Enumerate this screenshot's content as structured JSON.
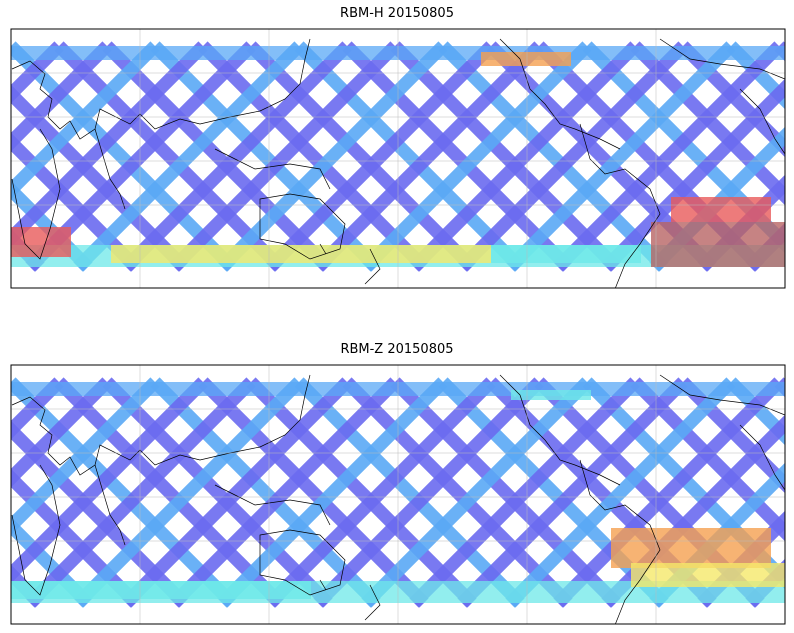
{
  "panels": [
    {
      "title": "RBM-H 20150805",
      "hotspots": "high"
    },
    {
      "title": "RBM-Z 20150805",
      "hotspots": "low"
    }
  ],
  "colors": {
    "track_blue": "#6a6af0",
    "track_light": "#5aa8f5",
    "cyan": "#6ee8e8",
    "yellow": "#f5e86a",
    "orange": "#f5a050",
    "red": "#e85a5a",
    "dark_red": "#b86464"
  }
}
